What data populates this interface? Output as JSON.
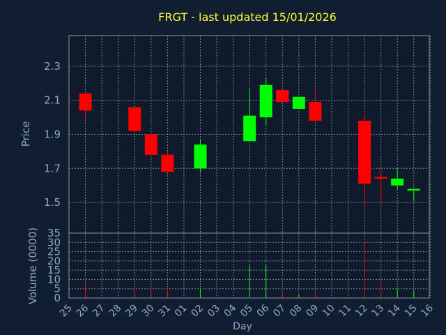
{
  "title": "FRGT - last updated 15/01/2026",
  "colors": {
    "background": "#111e31",
    "plot": "#0f1b2d",
    "frame": "#8a929c",
    "grid": "#7a8594",
    "title": "#ffff33",
    "axis_text": "#8fa8c8",
    "down": "#ff0000",
    "up": "#00ff00"
  },
  "chart_data": [
    {
      "type": "candlestick",
      "ylabel": "Price",
      "yticks": [
        1.5,
        1.7,
        1.9,
        2.1,
        2.3
      ],
      "ylim": [
        1.32,
        2.48
      ],
      "grid": true,
      "candles": [
        {
          "day": "26",
          "open": 2.14,
          "close": 2.04,
          "high": 2.14,
          "low": 1.99
        },
        {
          "day": "29",
          "open": 2.06,
          "close": 1.92,
          "high": 2.06,
          "low": 1.92
        },
        {
          "day": "30",
          "open": 1.9,
          "close": 1.78,
          "high": 1.9,
          "low": 1.78
        },
        {
          "day": "31",
          "open": 1.78,
          "close": 1.68,
          "high": 1.8,
          "low": 1.68
        },
        {
          "day": "02",
          "open": 1.7,
          "close": 1.84,
          "high": 1.87,
          "low": 1.68
        },
        {
          "day": "05",
          "open": 1.86,
          "close": 2.01,
          "high": 2.17,
          "low": 1.86
        },
        {
          "day": "06",
          "open": 2.0,
          "close": 2.19,
          "high": 2.23,
          "low": 1.95
        },
        {
          "day": "07",
          "open": 2.16,
          "close": 2.09,
          "high": 2.16,
          "low": 2.09
        },
        {
          "day": "08",
          "open": 2.05,
          "close": 2.12,
          "high": 2.12,
          "low": 2.05
        },
        {
          "day": "09",
          "open": 2.09,
          "close": 1.98,
          "high": 2.17,
          "low": 1.98
        },
        {
          "day": "12",
          "open": 1.98,
          "close": 1.61,
          "high": 2.02,
          "low": 1.48
        },
        {
          "day": "13",
          "open": 1.65,
          "close": 1.64,
          "high": 1.7,
          "low": 1.5
        },
        {
          "day": "14",
          "open": 1.6,
          "close": 1.64,
          "high": 1.7,
          "low": 1.58
        },
        {
          "day": "15",
          "open": 1.57,
          "close": 1.58,
          "high": 1.58,
          "low": 1.51
        }
      ]
    },
    {
      "type": "bar",
      "ylabel": "Volume (0000)",
      "xlabel": "Day",
      "yticks": [
        0,
        5,
        10,
        15,
        20,
        25,
        30,
        35
      ],
      "ylim": [
        0,
        35
      ],
      "grid": true,
      "categories": [
        "25",
        "26",
        "27",
        "28",
        "29",
        "30",
        "31",
        "01",
        "02",
        "03",
        "04",
        "05",
        "06",
        "07",
        "08",
        "09",
        "10",
        "11",
        "12",
        "13",
        "14",
        "15",
        "16"
      ],
      "bars": [
        {
          "day": "26",
          "value": 7,
          "direction": "down"
        },
        {
          "day": "29",
          "value": 5,
          "direction": "down"
        },
        {
          "day": "30",
          "value": 5,
          "direction": "down"
        },
        {
          "day": "31",
          "value": 6,
          "direction": "down"
        },
        {
          "day": "02",
          "value": 5,
          "direction": "up"
        },
        {
          "day": "05",
          "value": 18,
          "direction": "up"
        },
        {
          "day": "06",
          "value": 18,
          "direction": "up"
        },
        {
          "day": "07",
          "value": 3,
          "direction": "down"
        },
        {
          "day": "08",
          "value": 2,
          "direction": "up"
        },
        {
          "day": "09",
          "value": 3,
          "direction": "down"
        },
        {
          "day": "12",
          "value": 30,
          "direction": "down"
        },
        {
          "day": "13",
          "value": 8,
          "direction": "down"
        },
        {
          "day": "14",
          "value": 5,
          "direction": "up"
        },
        {
          "day": "15",
          "value": 4,
          "direction": "up"
        }
      ]
    }
  ]
}
